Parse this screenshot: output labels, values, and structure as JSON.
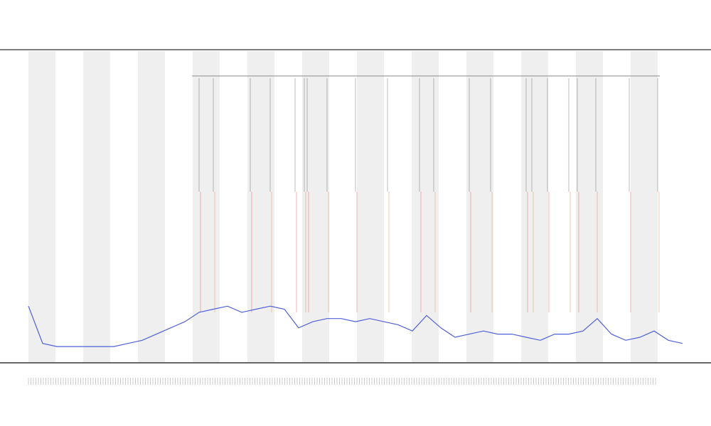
{
  "chart_data": {
    "type": "line",
    "series": [
      {
        "color": "#5060d8",
        "values": [
          18,
          6,
          5,
          5,
          5,
          5,
          5,
          6,
          7,
          9,
          11,
          13,
          16,
          17,
          18,
          16,
          17,
          18,
          17,
          11,
          13,
          14,
          14,
          13,
          14,
          13,
          12,
          10,
          15,
          11,
          8,
          9,
          10,
          9,
          9,
          8,
          7,
          9,
          9,
          10,
          14,
          9,
          7,
          8,
          10,
          7,
          6
        ]
      }
    ],
    "ylim": [
      0,
      100
    ]
  }
}
